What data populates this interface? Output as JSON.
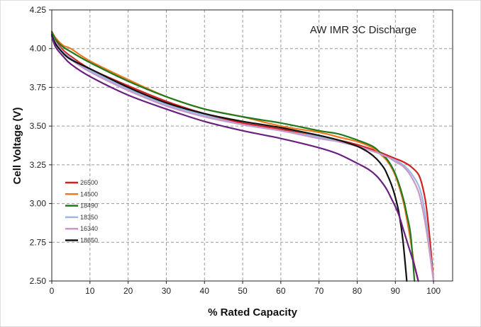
{
  "chart_data": {
    "type": "line",
    "title": "AW IMR 3C Discharge",
    "xlabel": "% Rated Capacity",
    "ylabel": "Cell Voltage (V)",
    "xlim": [
      0,
      105
    ],
    "ylim": [
      2.5,
      4.25
    ],
    "x_ticks": [
      0,
      10,
      20,
      30,
      40,
      50,
      60,
      70,
      80,
      90,
      100
    ],
    "y_ticks": [
      2.5,
      2.75,
      3.0,
      3.25,
      3.5,
      3.75,
      4.0,
      4.25
    ],
    "y_tick_labels": [
      "2.50",
      "2.75",
      "3.00",
      "3.25",
      "3.50",
      "3.75",
      "4.00",
      "4.25"
    ],
    "grid": true,
    "legend_position": "center-left",
    "series": [
      {
        "name": "26500",
        "color": "#d42020",
        "x": [
          0,
          1,
          3,
          5,
          10,
          20,
          30,
          40,
          50,
          60,
          70,
          75,
          80,
          85,
          88,
          90,
          92,
          94,
          96,
          97,
          98,
          99,
          100
        ],
        "y": [
          4.1,
          4.05,
          3.99,
          3.95,
          3.87,
          3.76,
          3.66,
          3.58,
          3.52,
          3.48,
          3.43,
          3.41,
          3.38,
          3.34,
          3.31,
          3.29,
          3.27,
          3.24,
          3.19,
          3.12,
          3.0,
          2.78,
          2.5
        ]
      },
      {
        "name": "14500",
        "color": "#f07820",
        "x": [
          0,
          1,
          3,
          5,
          10,
          20,
          30,
          40,
          50,
          60,
          70,
          75,
          80,
          84,
          86,
          88,
          90,
          92,
          93,
          94,
          95,
          96
        ],
        "y": [
          4.11,
          4.07,
          4.02,
          4.0,
          3.92,
          3.8,
          3.69,
          3.61,
          3.56,
          3.5,
          3.46,
          3.43,
          3.4,
          3.36,
          3.32,
          3.27,
          3.18,
          3.02,
          2.9,
          2.76,
          2.6,
          2.5
        ]
      },
      {
        "name": "18490",
        "color": "#1f7a1f",
        "x": [
          0,
          1,
          3,
          5,
          10,
          20,
          30,
          40,
          50,
          60,
          70,
          75,
          80,
          84,
          86,
          88,
          90,
          92,
          93,
          94,
          95
        ],
        "y": [
          4.11,
          4.06,
          4.01,
          3.98,
          3.91,
          3.79,
          3.69,
          3.61,
          3.56,
          3.52,
          3.47,
          3.45,
          3.41,
          3.37,
          3.33,
          3.28,
          3.19,
          3.04,
          2.93,
          2.8,
          2.5
        ]
      },
      {
        "name": "18350",
        "color": "#9bb8e0",
        "x": [
          0,
          1,
          3,
          5,
          10,
          20,
          30,
          40,
          50,
          60,
          70,
          75,
          80,
          85,
          88,
          90,
          92,
          94,
          96,
          97,
          98,
          99,
          100
        ],
        "y": [
          4.09,
          4.04,
          3.98,
          3.94,
          3.86,
          3.74,
          3.64,
          3.57,
          3.51,
          3.47,
          3.43,
          3.4,
          3.37,
          3.33,
          3.3,
          3.28,
          3.25,
          3.2,
          3.12,
          3.04,
          2.9,
          2.7,
          2.5
        ]
      },
      {
        "name": "16340",
        "color": "#c898c8",
        "x": [
          0,
          1,
          3,
          5,
          10,
          20,
          30,
          40,
          50,
          60,
          70,
          75,
          80,
          85,
          88,
          90,
          92,
          94,
          96,
          97,
          98,
          99,
          100
        ],
        "y": [
          4.08,
          4.03,
          3.97,
          3.93,
          3.85,
          3.73,
          3.63,
          3.56,
          3.51,
          3.47,
          3.42,
          3.4,
          3.37,
          3.33,
          3.3,
          3.27,
          3.24,
          3.18,
          3.08,
          2.98,
          2.85,
          2.68,
          2.5
        ]
      },
      {
        "name": "18650",
        "color": "#111111",
        "x": [
          0,
          1,
          3,
          5,
          10,
          20,
          30,
          40,
          50,
          60,
          70,
          75,
          80,
          83,
          85,
          87,
          88,
          89,
          90,
          91,
          92,
          93
        ],
        "y": [
          4.09,
          4.03,
          3.97,
          3.93,
          3.87,
          3.75,
          3.65,
          3.58,
          3.53,
          3.49,
          3.44,
          3.41,
          3.37,
          3.33,
          3.29,
          3.23,
          3.18,
          3.12,
          3.04,
          2.93,
          2.76,
          2.5
        ]
      },
      {
        "name": "",
        "color": "#6a2080",
        "x": [
          0,
          1,
          3,
          5,
          10,
          20,
          30,
          40,
          50,
          60,
          70,
          75,
          80,
          83,
          85,
          87,
          88,
          89,
          90,
          91,
          92,
          93,
          94,
          95,
          96
        ],
        "y": [
          4.08,
          4.01,
          3.95,
          3.9,
          3.82,
          3.7,
          3.61,
          3.53,
          3.47,
          3.42,
          3.36,
          3.32,
          3.26,
          3.22,
          3.18,
          3.12,
          3.08,
          3.03,
          2.98,
          2.92,
          2.84,
          2.76,
          2.68,
          2.6,
          2.5
        ]
      }
    ]
  }
}
